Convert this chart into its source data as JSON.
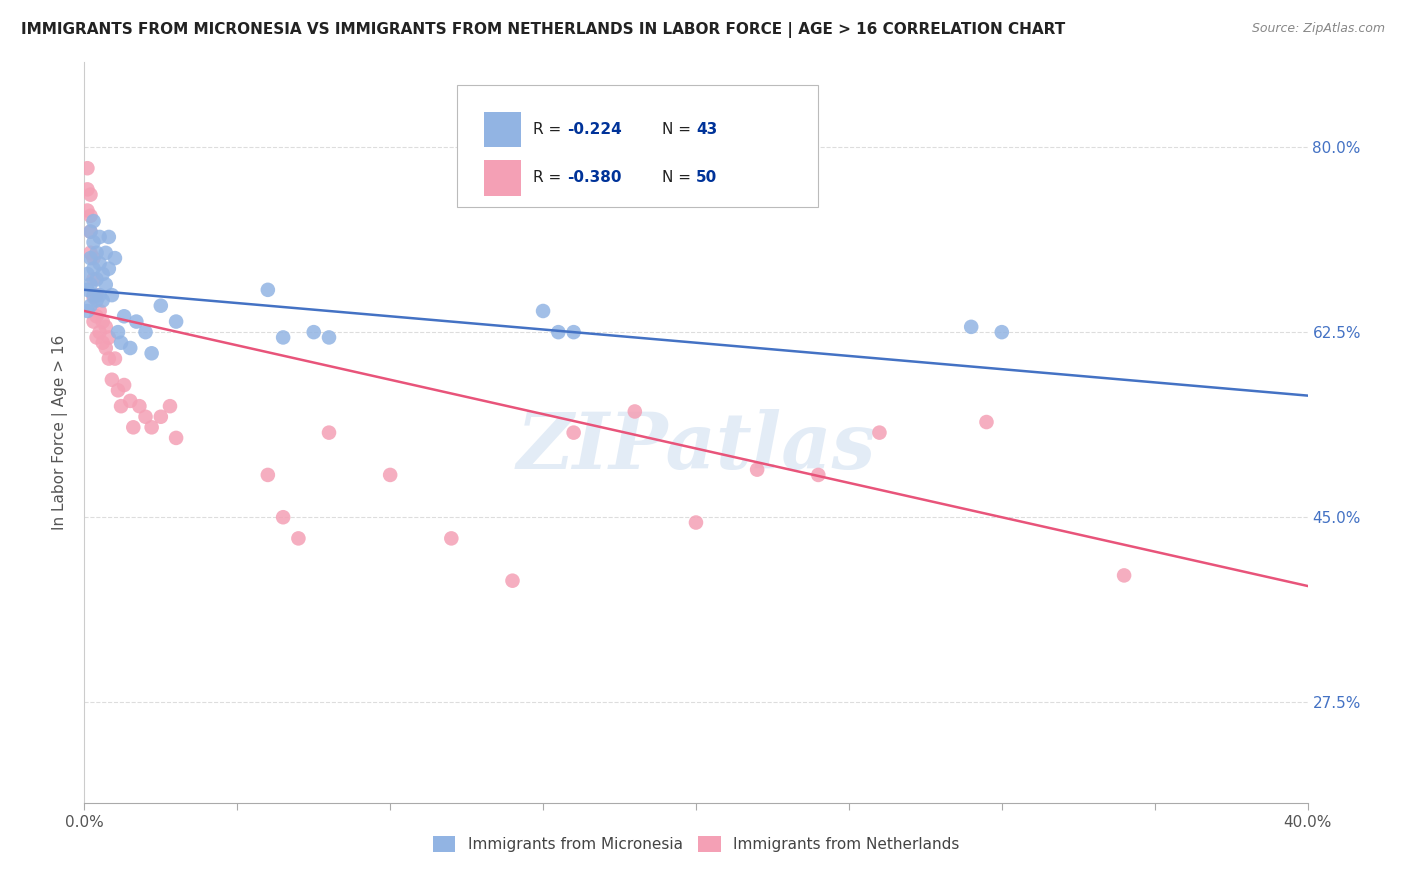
{
  "title": "IMMIGRANTS FROM MICRONESIA VS IMMIGRANTS FROM NETHERLANDS IN LABOR FORCE | AGE > 16 CORRELATION CHART",
  "source": "Source: ZipAtlas.com",
  "ylabel_label": "In Labor Force | Age > 16",
  "yticks": [
    0.275,
    0.45,
    0.625,
    0.8
  ],
  "ytick_labels": [
    "27.5%",
    "45.0%",
    "62.5%",
    "80.0%"
  ],
  "xlim": [
    0.0,
    0.4
  ],
  "ylim": [
    0.18,
    0.88
  ],
  "blue_R": -0.224,
  "blue_N": 43,
  "pink_R": -0.38,
  "pink_N": 50,
  "blue_color": "#92b4e3",
  "pink_color": "#f4a0b5",
  "blue_line_color": "#4472c4",
  "pink_line_color": "#e8547a",
  "legend_R_color": "#003399",
  "watermark": "ZIPatlas",
  "blue_line_start_y": 0.665,
  "blue_line_end_y": 0.565,
  "pink_line_start_y": 0.645,
  "pink_line_end_y": 0.385,
  "blue_scatter_x": [
    0.001,
    0.001,
    0.001,
    0.002,
    0.002,
    0.002,
    0.002,
    0.003,
    0.003,
    0.003,
    0.003,
    0.004,
    0.004,
    0.004,
    0.005,
    0.005,
    0.005,
    0.006,
    0.006,
    0.007,
    0.007,
    0.008,
    0.008,
    0.009,
    0.01,
    0.011,
    0.012,
    0.013,
    0.015,
    0.017,
    0.02,
    0.022,
    0.025,
    0.03,
    0.06,
    0.065,
    0.075,
    0.08,
    0.15,
    0.155,
    0.16,
    0.29,
    0.3
  ],
  "blue_scatter_y": [
    0.68,
    0.665,
    0.645,
    0.72,
    0.695,
    0.67,
    0.65,
    0.73,
    0.71,
    0.685,
    0.66,
    0.7,
    0.675,
    0.655,
    0.715,
    0.69,
    0.66,
    0.68,
    0.655,
    0.7,
    0.67,
    0.715,
    0.685,
    0.66,
    0.695,
    0.625,
    0.615,
    0.64,
    0.61,
    0.635,
    0.625,
    0.605,
    0.65,
    0.635,
    0.665,
    0.62,
    0.625,
    0.62,
    0.645,
    0.625,
    0.625,
    0.63,
    0.625
  ],
  "pink_scatter_x": [
    0.001,
    0.001,
    0.001,
    0.002,
    0.002,
    0.002,
    0.002,
    0.003,
    0.003,
    0.003,
    0.003,
    0.004,
    0.004,
    0.004,
    0.005,
    0.005,
    0.006,
    0.006,
    0.007,
    0.007,
    0.008,
    0.008,
    0.009,
    0.01,
    0.011,
    0.012,
    0.013,
    0.015,
    0.016,
    0.018,
    0.02,
    0.022,
    0.025,
    0.028,
    0.03,
    0.06,
    0.065,
    0.07,
    0.08,
    0.1,
    0.12,
    0.14,
    0.16,
    0.18,
    0.2,
    0.22,
    0.24,
    0.26,
    0.295,
    0.34
  ],
  "pink_scatter_y": [
    0.76,
    0.74,
    0.78,
    0.755,
    0.735,
    0.72,
    0.7,
    0.695,
    0.675,
    0.658,
    0.635,
    0.66,
    0.64,
    0.62,
    0.645,
    0.625,
    0.635,
    0.615,
    0.63,
    0.61,
    0.62,
    0.6,
    0.58,
    0.6,
    0.57,
    0.555,
    0.575,
    0.56,
    0.535,
    0.555,
    0.545,
    0.535,
    0.545,
    0.555,
    0.525,
    0.49,
    0.45,
    0.43,
    0.53,
    0.49,
    0.43,
    0.39,
    0.53,
    0.55,
    0.445,
    0.495,
    0.49,
    0.53,
    0.54,
    0.395
  ],
  "grid_color": "#dddddd",
  "background_color": "#ffffff",
  "xtick_count": 9
}
